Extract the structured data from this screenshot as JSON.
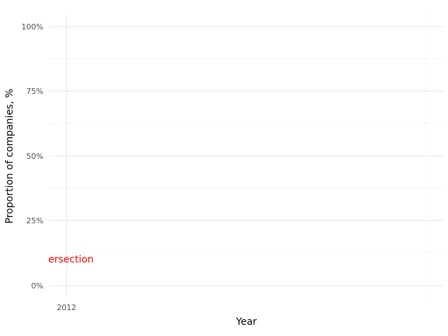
{
  "chart_data": {
    "type": "line",
    "title": "",
    "xlabel": "Year",
    "ylabel": "Proportion of companies, %",
    "x_ticks": [
      "2012"
    ],
    "y_ticks": [
      "0%",
      "25%",
      "50%",
      "75%",
      "100%"
    ],
    "y_tick_values": [
      0,
      25,
      50,
      75,
      100
    ],
    "ylim": [
      -5,
      105
    ],
    "grid": true,
    "series": [],
    "annotations": [
      {
        "text": "ersection",
        "color": "#ff0000",
        "y": 10
      }
    ]
  }
}
